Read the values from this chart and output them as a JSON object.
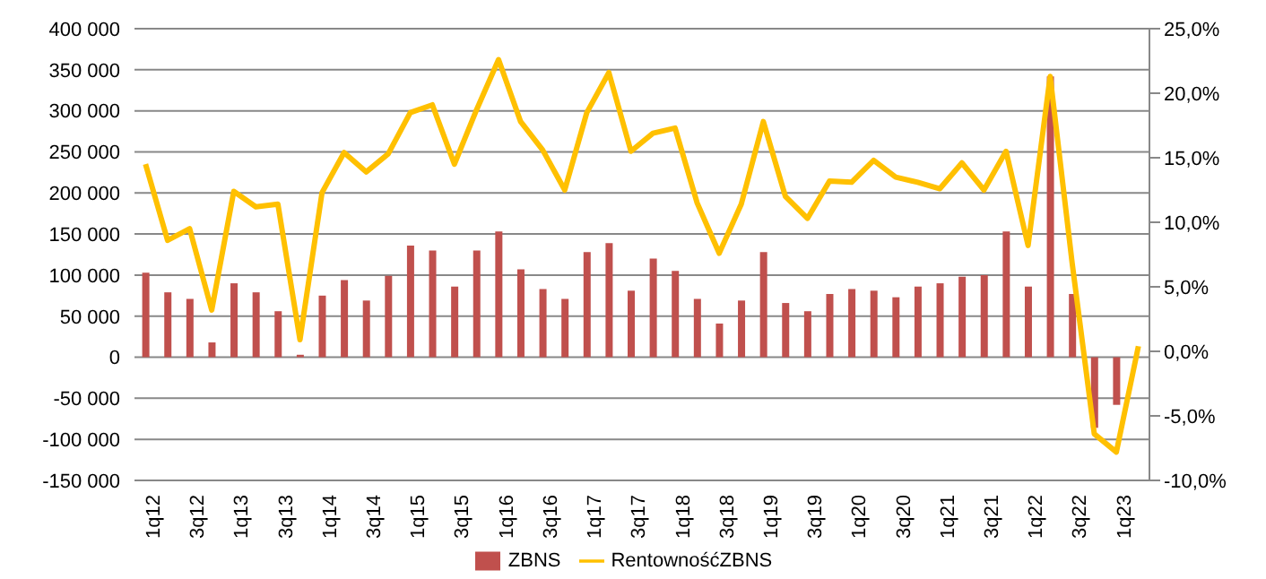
{
  "chart_data": {
    "type": "bar",
    "categories": [
      "1q12",
      null,
      "3q12",
      null,
      "1q13",
      null,
      "3q13",
      null,
      "1q14",
      null,
      "3q14",
      null,
      "1q15",
      null,
      "3q15",
      null,
      "1q16",
      null,
      "3q16",
      null,
      "1q17",
      null,
      "3q17",
      null,
      "1q18",
      null,
      "3q18",
      null,
      "1q19",
      null,
      "3q19",
      null,
      "1q20",
      null,
      "3q20",
      null,
      "1q21",
      null,
      "3q21",
      null,
      "1q22",
      null,
      "3q22",
      null,
      "1q23",
      null
    ],
    "series": [
      {
        "name": "ZBNS",
        "color": "#c0504d",
        "values": [
          103000,
          79000,
          71000,
          18000,
          90000,
          79000,
          56000,
          3000,
          75000,
          94000,
          69000,
          99000,
          136000,
          130000,
          86000,
          130000,
          153000,
          107000,
          83000,
          71000,
          128000,
          139000,
          81000,
          120000,
          105000,
          71000,
          41000,
          69000,
          128000,
          66000,
          56000,
          77000,
          83000,
          81000,
          73000,
          86000,
          90000,
          98000,
          100000,
          153000,
          86000,
          342000,
          77000,
          -86000,
          -58000,
          null
        ]
      },
      {
        "name": "RentownośćZBNS",
        "type": "line",
        "axis": "y2",
        "color": "#ffc000",
        "values": [
          14.5,
          8.6,
          9.5,
          3.2,
          12.4,
          11.2,
          11.4,
          0.9,
          12.3,
          15.4,
          13.9,
          15.3,
          18.5,
          19.1,
          14.5,
          18.7,
          22.6,
          17.8,
          15.6,
          12.5,
          18.5,
          21.6,
          15.5,
          16.9,
          17.3,
          11.5,
          7.6,
          11.4,
          17.8,
          12.0,
          10.3,
          13.2,
          13.1,
          14.8,
          13.5,
          13.1,
          12.6,
          14.6,
          12.5,
          15.5,
          8.2,
          21.3,
          6.8,
          -6.4,
          -7.8,
          0.4
        ]
      }
    ],
    "ylim": [
      -150000,
      400000
    ],
    "yticks": [
      {
        "value": -150000,
        "label": "-150 000"
      },
      {
        "value": -100000,
        "label": "-100 000"
      },
      {
        "value": -50000,
        "label": "-50 000"
      },
      0,
      {
        "value": 50000,
        "label": "50 000"
      },
      {
        "value": 100000,
        "label": "100 000"
      },
      {
        "value": 150000,
        "label": "150 000"
      },
      {
        "value": 200000,
        "label": "200 000"
      },
      {
        "value": 250000,
        "label": "250 000"
      },
      {
        "value": 300000,
        "label": "300 000"
      },
      {
        "value": 350000,
        "label": "350 000"
      },
      {
        "value": 400000,
        "label": "400 000"
      }
    ],
    "y2lim": [
      -10,
      25
    ],
    "y2ticks": [
      {
        "value": -10,
        "label": "-10,0%"
      },
      {
        "value": -5,
        "label": "-5,0%"
      },
      {
        "value": 0,
        "label": "0,0%"
      },
      {
        "value": 5,
        "label": "5,0%"
      },
      {
        "value": 10,
        "label": "10,0%"
      },
      {
        "value": 15,
        "label": "15,0%"
      },
      {
        "value": 20,
        "label": "20,0%"
      },
      {
        "value": 25,
        "label": "25,0%"
      }
    ],
    "grid": "y",
    "legend": "bottom"
  }
}
